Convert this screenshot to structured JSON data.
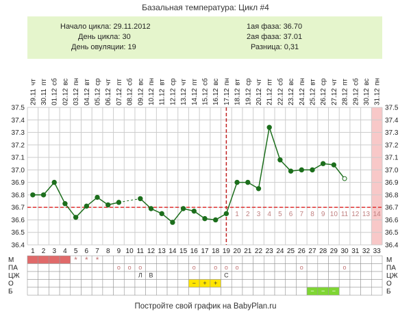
{
  "title": "Базальная температура: Цикл #4",
  "info": {
    "cycle_start": "Начало цикла: 29.11.2012",
    "cycle_day": "День цикла: 30",
    "ovulation_day": "День овуляции: 19",
    "phase1": "1ая фаза: 36.70",
    "phase2": "2ая фаза: 37.01",
    "difference": "Разница: 0,31"
  },
  "footer": "Постройте свой график на BabyPlan.ru",
  "moon_icon": "crescent-moon-icon",
  "colors": {
    "line": "#1c6e1c",
    "coverline": "#e03030",
    "ovulation_line": "#c02020",
    "menses": "#e06a6a",
    "future": "#f8c8c8",
    "grid": "#cccccc",
    "infobox": "#e5f5cc",
    "highlight_yellow": "#ffe500",
    "highlight_green": "#7fd633"
  },
  "chart_data": {
    "type": "line",
    "title": "Базальная температура: Цикл #4",
    "x": [
      1,
      2,
      3,
      4,
      5,
      6,
      7,
      8,
      9,
      10,
      11,
      12,
      13,
      14,
      15,
      16,
      17,
      18,
      19,
      20,
      21,
      22,
      23,
      24,
      25,
      26,
      27,
      28,
      29,
      30,
      31,
      32,
      33
    ],
    "dates": [
      "29.11",
      "30.11",
      "01.12",
      "02.12",
      "03.12",
      "04.12",
      "05.12",
      "06.12",
      "07.12",
      "08.12",
      "09.12",
      "10.12",
      "11.12",
      "12.12",
      "13.12",
      "14.12",
      "15.12",
      "16.12",
      "17.12",
      "18.12",
      "19.12",
      "20.12",
      "21.12",
      "22.12",
      "23.12",
      "24.12",
      "25.12",
      "26.12",
      "27.12",
      "28.12",
      "29.12",
      "30.12",
      "31.12"
    ],
    "weekdays": [
      "чт",
      "пт",
      "сб",
      "вс",
      "пн",
      "вт",
      "ср",
      "чт",
      "пт",
      "сб",
      "вс",
      "пн",
      "вт",
      "ср",
      "чт",
      "пт",
      "сб",
      "вс",
      "пн",
      "вт",
      "ср",
      "чт",
      "пт",
      "сб",
      "вс",
      "пн",
      "вт",
      "ср",
      "чт",
      "пт",
      "сб",
      "вс",
      "пн"
    ],
    "series": [
      {
        "values": [
          36.8,
          36.8,
          36.9,
          36.73,
          36.62,
          36.71,
          36.78,
          36.72,
          36.74,
          null,
          36.77,
          36.69,
          36.65,
          36.58,
          36.69,
          36.67,
          36.61,
          36.6,
          36.65,
          36.9,
          36.9,
          36.85,
          37.34,
          37.08,
          36.99,
          37.0,
          37.0,
          37.05,
          37.04,
          36.93,
          null,
          null,
          null
        ],
        "open_points": [
          30
        ]
      }
    ],
    "dashed_gaps": [
      [
        9,
        11
      ]
    ],
    "coverline": 36.7,
    "ovulation_day": 19,
    "luteal_day_labels": [
      "1",
      "2",
      "3",
      "4",
      "5",
      "6",
      "7",
      "8",
      "9",
      "10",
      "11",
      "12",
      "13",
      "14"
    ],
    "future_shaded_day": 33,
    "ylim": [
      36.4,
      37.5
    ],
    "yticks": [
      "36.4",
      "36.5",
      "36.6",
      "36.7",
      "36.8",
      "36.9",
      "37.0",
      "37.1",
      "37.2",
      "37.3",
      "37.4",
      "37.5"
    ],
    "moon_day": 10,
    "table": {
      "rows": [
        {
          "label": "М",
          "cells": {
            "1": "fill",
            "2": "fill",
            "3": "fill",
            "4": "fill",
            "5": "*",
            "6": "*",
            "7": "*"
          }
        },
        {
          "label": "ПА",
          "cells": {
            "9": "o",
            "10": "o",
            "11": "o",
            "16": "o",
            "18": "o",
            "19": "o",
            "20": "o",
            "26": "o",
            "30": "o"
          }
        },
        {
          "label": "ЦЖ",
          "cells": {
            "11": "Л",
            "12": "В",
            "19": "С"
          }
        },
        {
          "label": "О",
          "cells": {
            "16": "−",
            "17": "+",
            "18": "+"
          },
          "highlight": {
            "16": "yellow",
            "17": "yellow",
            "18": "yellow"
          }
        },
        {
          "label": "Б",
          "cells": {
            "27": "−",
            "28": "−",
            "29": "−"
          },
          "highlight": {
            "27": "green",
            "28": "green",
            "29": "green"
          }
        }
      ]
    }
  }
}
